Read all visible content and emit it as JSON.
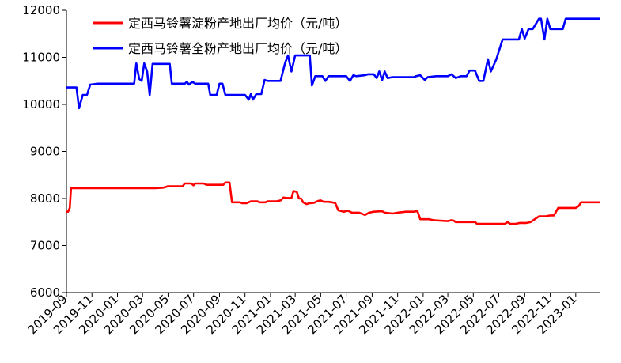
{
  "chart_data": {
    "type": "line",
    "title": "",
    "xlabel": "",
    "ylabel": "",
    "ylim": [
      6000,
      12000
    ],
    "yticks": [
      6000,
      7000,
      8000,
      9000,
      10000,
      11000,
      12000
    ],
    "grid": false,
    "legend_position": "top-left",
    "x_tick_labels": [
      "2019-09",
      "2019-11",
      "2020-01",
      "2020-03",
      "2020-05",
      "2020-07",
      "2020-09",
      "2020-11",
      "2021-01",
      "2021-03",
      "2021-05",
      "2021-07",
      "2021-09",
      "2021-11",
      "2022-01",
      "2022-03",
      "2022-05",
      "2022-07",
      "2022-09",
      "2022-11",
      "2023-01"
    ],
    "series": [
      {
        "name": "定西马铃薯淀粉产地出厂均价（元/吨）",
        "color": "#ff0000",
        "points": [
          [
            "2019-09-01",
            7720
          ],
          [
            "2019-09-05",
            7720
          ],
          [
            "2019-09-09",
            7800
          ],
          [
            "2019-09-12",
            8220
          ],
          [
            "2019-10-15",
            8220
          ],
          [
            "2019-12-01",
            8220
          ],
          [
            "2020-02-01",
            8220
          ],
          [
            "2020-04-01",
            8220
          ],
          [
            "2020-04-20",
            8230
          ],
          [
            "2020-05-01",
            8260
          ],
          [
            "2020-06-05",
            8260
          ],
          [
            "2020-06-10",
            8320
          ],
          [
            "2020-06-25",
            8320
          ],
          [
            "2020-07-01",
            8280
          ],
          [
            "2020-07-05",
            8320
          ],
          [
            "2020-07-25",
            8320
          ],
          [
            "2020-08-01",
            8290
          ],
          [
            "2020-09-10",
            8290
          ],
          [
            "2020-09-15",
            8340
          ],
          [
            "2020-09-25",
            8340
          ],
          [
            "2020-10-01",
            7920
          ],
          [
            "2020-10-20",
            7920
          ],
          [
            "2020-10-25",
            7900
          ],
          [
            "2020-11-05",
            7900
          ],
          [
            "2020-11-15",
            7940
          ],
          [
            "2020-12-01",
            7940
          ],
          [
            "2020-12-05",
            7920
          ],
          [
            "2020-12-20",
            7920
          ],
          [
            "2020-12-25",
            7940
          ],
          [
            "2021-01-15",
            7940
          ],
          [
            "2021-01-25",
            7960
          ],
          [
            "2021-02-01",
            8020
          ],
          [
            "2021-02-10",
            8010
          ],
          [
            "2021-02-20",
            8010
          ],
          [
            "2021-02-25",
            8160
          ],
          [
            "2021-03-05",
            8140
          ],
          [
            "2021-03-10",
            8000
          ],
          [
            "2021-03-15",
            8000
          ],
          [
            "2021-03-20",
            7920
          ],
          [
            "2021-03-28",
            7880
          ],
          [
            "2021-04-05",
            7900
          ],
          [
            "2021-04-15",
            7910
          ],
          [
            "2021-04-25",
            7950
          ],
          [
            "2021-05-01",
            7960
          ],
          [
            "2021-05-08",
            7930
          ],
          [
            "2021-05-20",
            7930
          ],
          [
            "2021-05-28",
            7920
          ],
          [
            "2021-06-05",
            7900
          ],
          [
            "2021-06-12",
            7750
          ],
          [
            "2021-06-25",
            7720
          ],
          [
            "2021-07-05",
            7740
          ],
          [
            "2021-07-15",
            7700
          ],
          [
            "2021-08-01",
            7700
          ],
          [
            "2021-08-15",
            7650
          ],
          [
            "2021-08-25",
            7700
          ],
          [
            "2021-09-05",
            7720
          ],
          [
            "2021-09-25",
            7730
          ],
          [
            "2021-10-01",
            7700
          ],
          [
            "2021-10-20",
            7680
          ],
          [
            "2021-11-01",
            7700
          ],
          [
            "2021-11-20",
            7720
          ],
          [
            "2021-12-10",
            7720
          ],
          [
            "2021-12-18",
            7740
          ],
          [
            "2021-12-25",
            7560
          ],
          [
            "2022-01-15",
            7560
          ],
          [
            "2022-01-25",
            7540
          ],
          [
            "2022-02-10",
            7530
          ],
          [
            "2022-03-01",
            7520
          ],
          [
            "2022-03-10",
            7540
          ],
          [
            "2022-03-15",
            7530
          ],
          [
            "2022-03-20",
            7500
          ],
          [
            "2022-04-10",
            7500
          ],
          [
            "2022-05-05",
            7500
          ],
          [
            "2022-05-10",
            7460
          ],
          [
            "2022-06-01",
            7460
          ],
          [
            "2022-07-01",
            7460
          ],
          [
            "2022-07-15",
            7460
          ],
          [
            "2022-07-22",
            7500
          ],
          [
            "2022-07-28",
            7460
          ],
          [
            "2022-08-10",
            7460
          ],
          [
            "2022-08-20",
            7480
          ],
          [
            "2022-09-05",
            7480
          ],
          [
            "2022-09-15",
            7500
          ],
          [
            "2022-09-25",
            7560
          ],
          [
            "2022-10-05",
            7620
          ],
          [
            "2022-10-20",
            7620
          ],
          [
            "2022-11-01",
            7640
          ],
          [
            "2022-11-10",
            7640
          ],
          [
            "2022-11-20",
            7800
          ],
          [
            "2022-12-10",
            7800
          ],
          [
            "2022-12-25",
            7800
          ],
          [
            "2023-01-01",
            7800
          ],
          [
            "2023-01-08",
            7840
          ],
          [
            "2023-01-14",
            7920
          ],
          [
            "2023-02-05",
            7920
          ],
          [
            "2023-02-28",
            7920
          ]
        ]
      },
      {
        "name": "定西马铃薯全粉产地出厂均价（元/吨）",
        "color": "#0000ff",
        "points": [
          [
            "2019-09-01",
            10360
          ],
          [
            "2019-09-25",
            10360
          ],
          [
            "2019-10-01",
            9920
          ],
          [
            "2019-10-10",
            10200
          ],
          [
            "2019-10-20",
            10200
          ],
          [
            "2019-10-28",
            10420
          ],
          [
            "2019-11-15",
            10440
          ],
          [
            "2020-01-15",
            10440
          ],
          [
            "2020-02-10",
            10440
          ],
          [
            "2020-02-15",
            10870
          ],
          [
            "2020-02-22",
            10540
          ],
          [
            "2020-02-28",
            10500
          ],
          [
            "2020-03-05",
            10870
          ],
          [
            "2020-03-12",
            10700
          ],
          [
            "2020-03-18",
            10200
          ],
          [
            "2020-03-25",
            10860
          ],
          [
            "2020-04-20",
            10860
          ],
          [
            "2020-05-05",
            10860
          ],
          [
            "2020-05-10",
            10440
          ],
          [
            "2020-06-10",
            10440
          ],
          [
            "2020-06-15",
            10480
          ],
          [
            "2020-06-20",
            10420
          ],
          [
            "2020-06-28",
            10480
          ],
          [
            "2020-07-05",
            10440
          ],
          [
            "2020-08-05",
            10440
          ],
          [
            "2020-08-10",
            10200
          ],
          [
            "2020-08-25",
            10200
          ],
          [
            "2020-09-01",
            10440
          ],
          [
            "2020-09-08",
            10440
          ],
          [
            "2020-09-15",
            10200
          ],
          [
            "2020-10-20",
            10200
          ],
          [
            "2020-11-01",
            10200
          ],
          [
            "2020-11-10",
            10100
          ],
          [
            "2020-11-15",
            10220
          ],
          [
            "2020-11-20",
            10100
          ],
          [
            "2020-11-28",
            10220
          ],
          [
            "2020-12-10",
            10220
          ],
          [
            "2020-12-18",
            10520
          ],
          [
            "2020-12-25",
            10500
          ],
          [
            "2021-01-15",
            10500
          ],
          [
            "2021-01-25",
            10500
          ],
          [
            "2021-02-05",
            10880
          ],
          [
            "2021-02-12",
            11040
          ],
          [
            "2021-02-20",
            10700
          ],
          [
            "2021-03-01",
            11040
          ],
          [
            "2021-04-05",
            11040
          ],
          [
            "2021-04-10",
            10400
          ],
          [
            "2021-04-18",
            10600
          ],
          [
            "2021-05-05",
            10600
          ],
          [
            "2021-05-12",
            10500
          ],
          [
            "2021-05-20",
            10600
          ],
          [
            "2021-06-01",
            10600
          ],
          [
            "2021-07-01",
            10600
          ],
          [
            "2021-07-10",
            10500
          ],
          [
            "2021-07-18",
            10620
          ],
          [
            "2021-07-25",
            10600
          ],
          [
            "2021-08-15",
            10620
          ],
          [
            "2021-08-22",
            10640
          ],
          [
            "2021-09-05",
            10640
          ],
          [
            "2021-09-12",
            10560
          ],
          [
            "2021-09-18",
            10700
          ],
          [
            "2021-09-25",
            10520
          ],
          [
            "2021-10-01",
            10700
          ],
          [
            "2021-10-08",
            10560
          ],
          [
            "2021-10-20",
            10580
          ],
          [
            "2021-11-15",
            10580
          ],
          [
            "2021-12-10",
            10580
          ],
          [
            "2021-12-15",
            10600
          ],
          [
            "2021-12-25",
            10620
          ],
          [
            "2022-01-05",
            10520
          ],
          [
            "2022-01-12",
            10580
          ],
          [
            "2022-02-01",
            10600
          ],
          [
            "2022-03-01",
            10600
          ],
          [
            "2022-03-10",
            10640
          ],
          [
            "2022-03-20",
            10560
          ],
          [
            "2022-04-01",
            10600
          ],
          [
            "2022-04-15",
            10600
          ],
          [
            "2022-04-22",
            10720
          ],
          [
            "2022-05-05",
            10720
          ],
          [
            "2022-05-15",
            10500
          ],
          [
            "2022-05-25",
            10500
          ],
          [
            "2022-06-05",
            10960
          ],
          [
            "2022-06-12",
            10700
          ],
          [
            "2022-06-25",
            10960
          ],
          [
            "2022-07-10",
            11380
          ],
          [
            "2022-07-20",
            11380
          ],
          [
            "2022-08-10",
            11380
          ],
          [
            "2022-08-18",
            11380
          ],
          [
            "2022-08-25",
            11600
          ],
          [
            "2022-09-01",
            11400
          ],
          [
            "2022-09-10",
            11600
          ],
          [
            "2022-09-20",
            11600
          ],
          [
            "2022-10-05",
            11820
          ],
          [
            "2022-10-10",
            11820
          ],
          [
            "2022-10-18",
            11380
          ],
          [
            "2022-10-25",
            11820
          ],
          [
            "2022-11-01",
            11600
          ],
          [
            "2022-11-20",
            11600
          ],
          [
            "2022-12-01",
            11600
          ],
          [
            "2022-12-08",
            11820
          ],
          [
            "2022-12-25",
            11820
          ],
          [
            "2023-01-10",
            11820
          ],
          [
            "2023-02-28",
            11820
          ]
        ]
      }
    ]
  }
}
